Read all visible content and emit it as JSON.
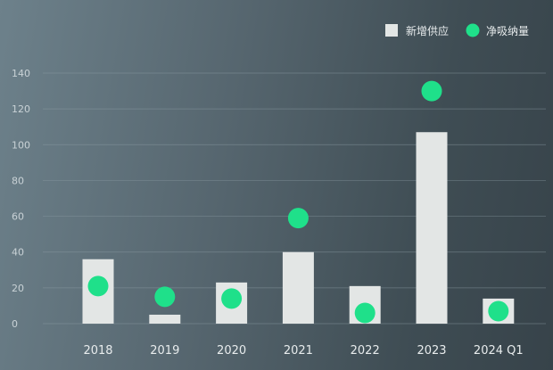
{
  "chart_data": {
    "type": "bar",
    "categories": [
      "2018",
      "2019",
      "2020",
      "2021",
      "2022",
      "2023",
      "2024 Q1"
    ],
    "series": [
      {
        "name": "新增供应",
        "type": "bar",
        "values": [
          36,
          5,
          23,
          40,
          21,
          107,
          14
        ],
        "color": "#e3e6e5"
      },
      {
        "name": "净吸纳量",
        "type": "scatter",
        "values": [
          21,
          15,
          14,
          59,
          6,
          130,
          7
        ],
        "color": "#1fe08a"
      }
    ],
    "yticks": [
      0,
      20,
      40,
      60,
      80,
      100,
      120,
      140
    ],
    "ylim": [
      0,
      140
    ],
    "grid": true,
    "legend_position": "top-right"
  }
}
